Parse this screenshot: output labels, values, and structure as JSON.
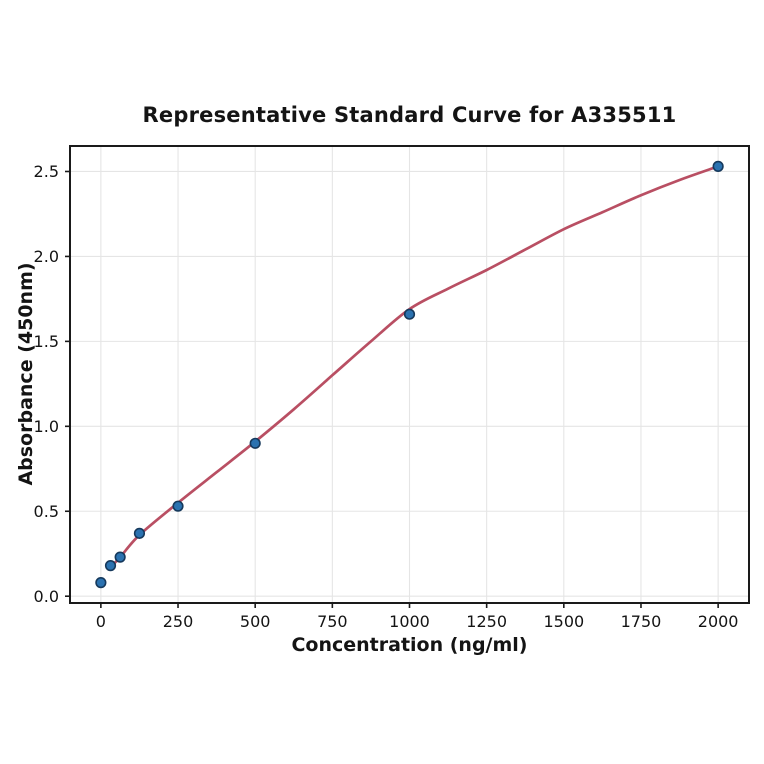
{
  "chart_data": {
    "type": "scatter",
    "title": "Representative Standard Curve for A335511",
    "xlabel": "Concentration (ng/ml)",
    "ylabel": "Absorbance (450nm)",
    "xlim": [
      -100,
      2100
    ],
    "ylim": [
      -0.04,
      2.65
    ],
    "xticks": [
      0,
      250,
      500,
      750,
      1000,
      1250,
      1500,
      1750,
      2000
    ],
    "xtick_labels": [
      "0",
      "250",
      "500",
      "750",
      "1000",
      "1250",
      "1500",
      "1750",
      "2000"
    ],
    "yticks": [
      0,
      0.5,
      1,
      1.5,
      2,
      2.5
    ],
    "ytick_labels": [
      "0.0",
      "0.5",
      "1.0",
      "1.5",
      "2.0",
      "2.5"
    ],
    "grid": true,
    "legend_position": "none",
    "series": [
      {
        "name": "standard-points",
        "type": "scatter",
        "x": [
          0,
          31.25,
          62.5,
          125,
          250,
          500,
          1000,
          2000
        ],
        "y": [
          0.08,
          0.18,
          0.23,
          0.37,
          0.53,
          0.9,
          1.66,
          2.53
        ]
      },
      {
        "name": "fitted-curve",
        "type": "line",
        "x": [
          31.25,
          62.5,
          125,
          250,
          375,
          500,
          625,
          750,
          875,
          1000,
          1125,
          1250,
          1375,
          1500,
          1625,
          1750,
          1875,
          2000
        ],
        "y": [
          0.17,
          0.23,
          0.36,
          0.55,
          0.73,
          0.91,
          1.1,
          1.3,
          1.5,
          1.69,
          1.81,
          1.92,
          2.04,
          2.16,
          2.26,
          2.36,
          2.45,
          2.53
        ]
      }
    ],
    "colors": {
      "marker_fill": "#2b72b0",
      "marker_edge": "#16395c",
      "curve": "#b94f63",
      "grid": "#e5e5e5",
      "spine": "#1a1a1a",
      "text": "#141414",
      "background": "#ffffff"
    }
  }
}
